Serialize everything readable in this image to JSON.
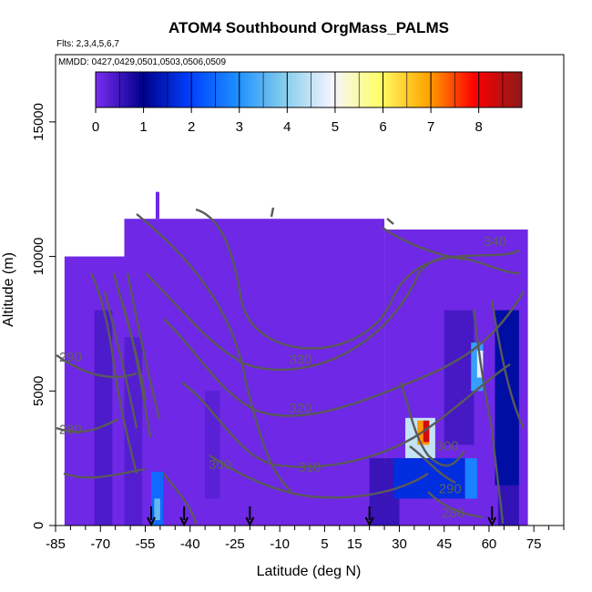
{
  "chart_data": {
    "type": "heatmap",
    "title": "ATOM4 Southbound OrgMass_PALMS",
    "subtitle_flights": "Flts: 2,3,4,5,6,7",
    "subtitle_dates": "MMDD: 0427,0429,0501,0503,0506,0509",
    "xlabel": "Latitude (deg N)",
    "ylabel": "Altitude (m)",
    "xlim": [
      -85,
      85
    ],
    "ylim": [
      0,
      17500
    ],
    "xticks": [
      "-85",
      "-70",
      "-55",
      "-40",
      "-25",
      "-10",
      "5",
      "15",
      "30",
      "45",
      "60",
      "75"
    ],
    "xtick_values": [
      -85,
      -70,
      -55,
      -40,
      -25,
      -10,
      5,
      15,
      30,
      45,
      60,
      75
    ],
    "yticks": [
      "0",
      "5000",
      "10000",
      "15000"
    ],
    "ytick_values": [
      0,
      5000,
      10000,
      15000
    ],
    "colorbar": {
      "ticks": [
        "0",
        "1",
        "2",
        "3",
        "4",
        "5",
        "6",
        "7",
        "8"
      ],
      "range": [
        0,
        8.9
      ],
      "colors": [
        "#7b2cf0",
        "#00008b",
        "#0040ff",
        "#1e90ff",
        "#87ceeb",
        "#f5f5ff",
        "#ffff66",
        "#ffa500",
        "#ff0000",
        "#8b1a1a"
      ]
    },
    "coverage": {
      "lat_range": [
        -82,
        73
      ],
      "top_altitude_m": 11400,
      "background_value": 0.1
    },
    "patches": [
      {
        "lat": [
          -53,
          -49
        ],
        "alt": [
          0,
          2000
        ],
        "value": 2.5
      },
      {
        "lat": [
          -52,
          -50
        ],
        "alt": [
          200,
          1000
        ],
        "value": 3.6
      },
      {
        "lat": [
          32,
          42
        ],
        "alt": [
          2500,
          4000
        ],
        "value": 4.5
      },
      {
        "lat": [
          36,
          40
        ],
        "alt": [
          3000,
          3900
        ],
        "value": 7.0
      },
      {
        "lat": [
          38,
          40
        ],
        "alt": [
          3100,
          3900
        ],
        "value": 8.3
      },
      {
        "lat": [
          28,
          52
        ],
        "alt": [
          1000,
          2500
        ],
        "value": 1.7
      },
      {
        "lat": [
          54,
          58
        ],
        "alt": [
          5000,
          6800
        ],
        "value": 3.2
      },
      {
        "lat": [
          56,
          58
        ],
        "alt": [
          5500,
          6500
        ],
        "value": 4.8
      },
      {
        "lat": [
          62,
          70
        ],
        "alt": [
          1500,
          8000
        ],
        "value": 1.2
      },
      {
        "lat": [
          52,
          56
        ],
        "alt": [
          1000,
          2500
        ],
        "value": 2.8
      }
    ],
    "contour_labels": [
      {
        "text": "340",
        "lat": 62,
        "alt": 10400
      },
      {
        "text": "330",
        "lat": -3,
        "alt": 6000
      },
      {
        "text": "320",
        "lat": -3,
        "alt": 4200
      },
      {
        "text": "310",
        "lat": 0,
        "alt": 2000
      },
      {
        "text": "300",
        "lat": -30,
        "alt": 2100
      },
      {
        "text": "300",
        "lat": 46,
        "alt": 2800
      },
      {
        "text": "290",
        "lat": -80,
        "alt": 6100
      },
      {
        "text": "290",
        "lat": 47,
        "alt": 1200
      },
      {
        "text": "280",
        "lat": -80,
        "alt": 3400
      },
      {
        "text": "280",
        "lat": 48,
        "alt": 300
      }
    ],
    "arrow_latitudes": [
      -53,
      -42,
      -20,
      20,
      61
    ]
  }
}
